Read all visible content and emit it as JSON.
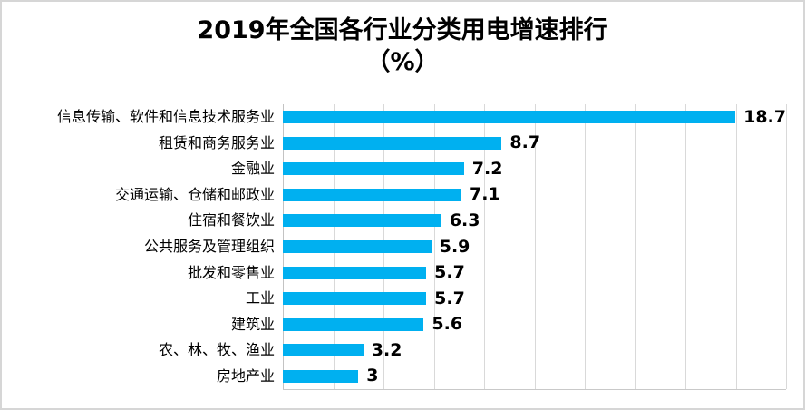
{
  "title": {
    "line1": "2019年全国各行业分类用电增速排行",
    "line2": "（%）"
  },
  "chart_data": {
    "type": "bar",
    "orientation": "horizontal",
    "title": "2019年全国各行业分类用电增速排行（%）",
    "categories": [
      "信息传输、软件和信息技术服务业",
      "租赁和商务服务业",
      "金融业",
      "交通运输、仓储和邮政业",
      "住宿和餐饮业",
      "公共服务及管理组织",
      "批发和零售业",
      "工业",
      "建筑业",
      "农、林、牧、渔业",
      "房地产业"
    ],
    "values": [
      18.7,
      8.7,
      7.2,
      7.1,
      6.3,
      5.9,
      5.7,
      5.7,
      5.6,
      3.2,
      3
    ],
    "value_labels": [
      "18.7",
      "8.7",
      "7.2",
      "7.1",
      "6.3",
      "5.9",
      "5.7",
      "5.7",
      "5.6",
      "3.2",
      "3"
    ],
    "xlabel": "",
    "ylabel": "",
    "xlim": [
      0,
      20
    ],
    "gridline_interval": 2,
    "grid": true,
    "legend": false,
    "bar_color": "#00b0f0",
    "gridline_color": "#d9d9d9",
    "axis_color": "#c3c3c3",
    "label_color": "#000000",
    "background_color": "#ffffff"
  }
}
